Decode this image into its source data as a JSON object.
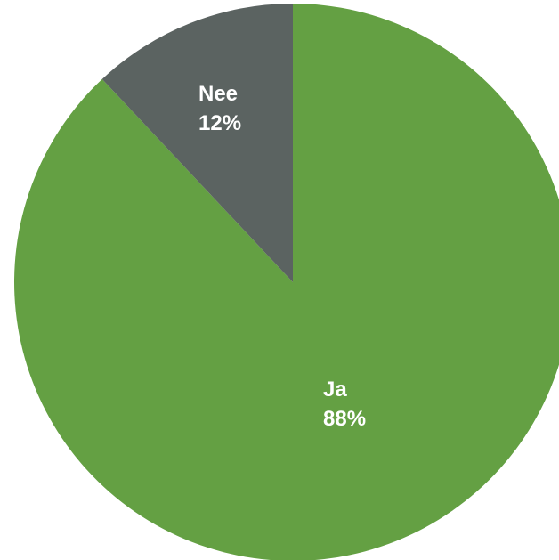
{
  "chart_data": {
    "type": "pie",
    "start_angle_deg": 0,
    "direction": "clockwise",
    "slices": [
      {
        "label": "Ja",
        "value": 88,
        "value_label": "88%",
        "color": "#64A043"
      },
      {
        "label": "Nee",
        "value": 12,
        "value_label": "12%",
        "color": "#5B6361"
      }
    ]
  }
}
